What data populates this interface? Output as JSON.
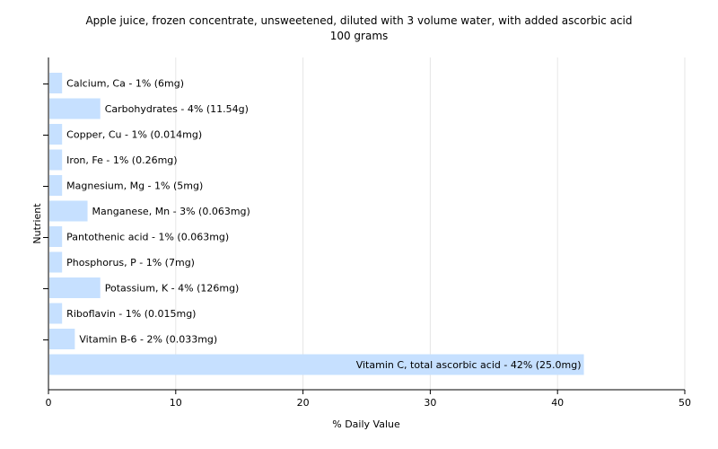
{
  "chart_data": {
    "type": "bar",
    "orientation": "horizontal",
    "title": "Apple juice, frozen concentrate, unsweetened, diluted with 3 volume water, with added ascorbic acid",
    "subtitle": "100 grams",
    "xlabel": "% Daily Value",
    "ylabel": "Nutrient",
    "xlim": [
      0,
      50
    ],
    "xticks": [
      0,
      10,
      20,
      30,
      40,
      50
    ],
    "grid": true,
    "bar_color": "#c6e0ff",
    "categories": [
      "Calcium, Ca - 1% (6mg)",
      "Carbohydrates - 4% (11.54g)",
      "Copper, Cu - 1% (0.014mg)",
      "Iron, Fe - 1% (0.26mg)",
      "Magnesium, Mg - 1% (5mg)",
      "Manganese, Mn - 3% (0.063mg)",
      "Pantothenic acid - 1% (0.063mg)",
      "Phosphorus, P - 1% (7mg)",
      "Potassium, K - 4% (126mg)",
      "Riboflavin - 1% (0.015mg)",
      "Vitamin B-6 - 2% (0.033mg)",
      "Vitamin C, total ascorbic acid - 42% (25.0mg)"
    ],
    "values": [
      1,
      4,
      1,
      1,
      1,
      3,
      1,
      1,
      4,
      1,
      2,
      42
    ]
  }
}
